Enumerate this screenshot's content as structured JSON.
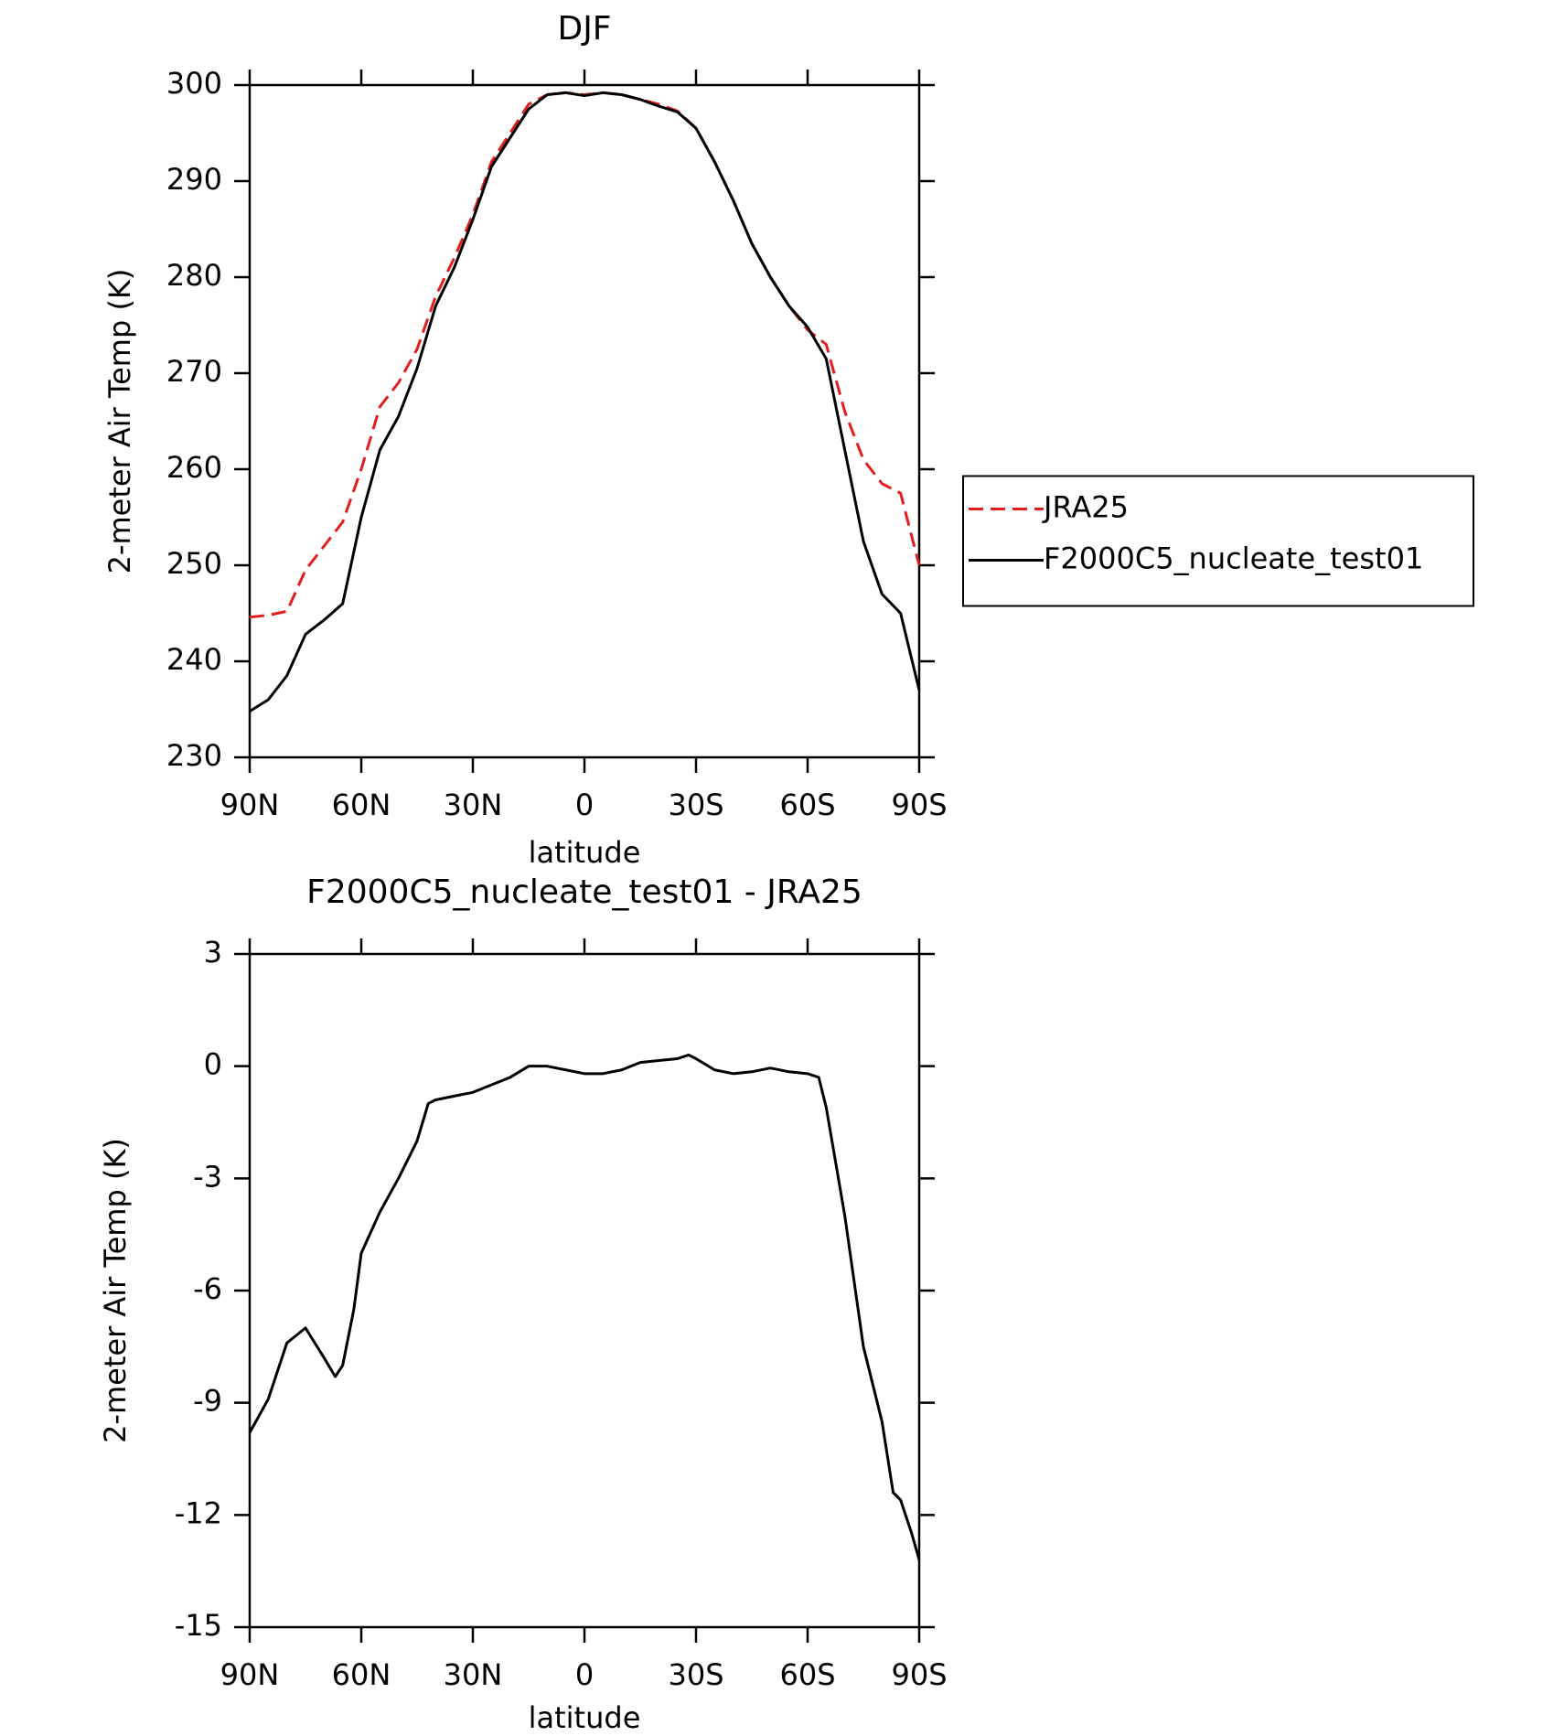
{
  "chart_data": [
    {
      "type": "line",
      "title": "DJF",
      "xlabel": "latitude",
      "ylabel": "2-meter Air Temp (K)",
      "x": [
        90,
        85,
        80,
        75,
        70,
        65,
        60,
        55,
        50,
        45,
        40,
        35,
        30,
        25,
        20,
        15,
        10,
        5,
        0,
        -5,
        -10,
        -15,
        -20,
        -25,
        -30,
        -35,
        -40,
        -45,
        -50,
        -55,
        -60,
        -65,
        -70,
        -75,
        -80,
        -85,
        -90
      ],
      "series": [
        {
          "name": "JRA25",
          "color": "#e41e1e",
          "dashed": true,
          "values": [
            244.6,
            244.8,
            245.2,
            249.5,
            252,
            254.5,
            260,
            266.5,
            269,
            272.5,
            278,
            282,
            286.5,
            292,
            295,
            298,
            299,
            299.2,
            299,
            299.2,
            299,
            298.5,
            298,
            297.3,
            295.5,
            292,
            288,
            283.5,
            280,
            277,
            274.5,
            273,
            266,
            261,
            258.5,
            257.5,
            250
          ]
        },
        {
          "name": "F2000C5_nucleate_test01",
          "color": "#000000",
          "dashed": false,
          "values": [
            234.8,
            236,
            238.5,
            242.8,
            244.3,
            246,
            255,
            262,
            265.5,
            270.5,
            277,
            281,
            286,
            291.5,
            294.5,
            297.5,
            299,
            299.2,
            298.9,
            299.2,
            299,
            298.5,
            297.8,
            297.2,
            295.5,
            292,
            288,
            283.5,
            280,
            277,
            274.8,
            271.5,
            262,
            252.5,
            247,
            245,
            237
          ]
        }
      ],
      "xlim": [
        90,
        -90
      ],
      "xticks": [
        {
          "value": 90,
          "label": "90N"
        },
        {
          "value": 60,
          "label": "60N"
        },
        {
          "value": 30,
          "label": "30N"
        },
        0,
        {
          "value": -30,
          "label": "30S"
        },
        {
          "value": -60,
          "label": "60S"
        },
        {
          "value": -90,
          "label": "90S"
        }
      ],
      "ylim": [
        230,
        300
      ],
      "yticks": [
        230,
        240,
        250,
        260,
        270,
        280,
        290,
        300
      ],
      "legend": "right",
      "grid": false
    },
    {
      "type": "line",
      "title": "F2000C5_nucleate_test01 - JRA25",
      "xlabel": "latitude",
      "ylabel": "2-meter Air Temp (K)",
      "x": [
        90,
        85,
        80,
        75,
        70,
        67,
        65,
        62,
        60,
        55,
        50,
        45,
        42,
        40,
        35,
        30,
        25,
        20,
        15,
        10,
        5,
        0,
        -5,
        -10,
        -15,
        -20,
        -25,
        -28,
        -30,
        -35,
        -40,
        -45,
        -50,
        -55,
        -60,
        -63,
        -65,
        -70,
        -75,
        -80,
        -83,
        -85,
        -88,
        -90
      ],
      "values": [
        -9.8,
        -8.9,
        -7.4,
        -7.0,
        -7.8,
        -8.3,
        -8.0,
        -6.5,
        -5.0,
        -3.9,
        -3.0,
        -2.0,
        -1.0,
        -0.9,
        -0.8,
        -0.7,
        -0.5,
        -0.3,
        0,
        0,
        -0.1,
        -0.2,
        -0.2,
        -0.1,
        0.1,
        0.15,
        0.2,
        0.3,
        0.2,
        -0.1,
        -0.2,
        -0.15,
        -0.05,
        -0.15,
        -0.2,
        -0.3,
        -1.1,
        -4.0,
        -7.5,
        -9.5,
        -11.4,
        -11.6,
        -12.5,
        -13.2
      ],
      "color": "#000000",
      "xlim": [
        90,
        -90
      ],
      "xticks": [
        {
          "value": 90,
          "label": "90N"
        },
        {
          "value": 60,
          "label": "60N"
        },
        {
          "value": 30,
          "label": "30N"
        },
        0,
        {
          "value": -30,
          "label": "30S"
        },
        {
          "value": -60,
          "label": "60S"
        },
        {
          "value": -90,
          "label": "90S"
        }
      ],
      "ylim": [
        -15,
        3
      ],
      "yticks": [
        -15,
        -12,
        -9,
        -6,
        -3,
        0,
        3
      ],
      "grid": false
    }
  ]
}
